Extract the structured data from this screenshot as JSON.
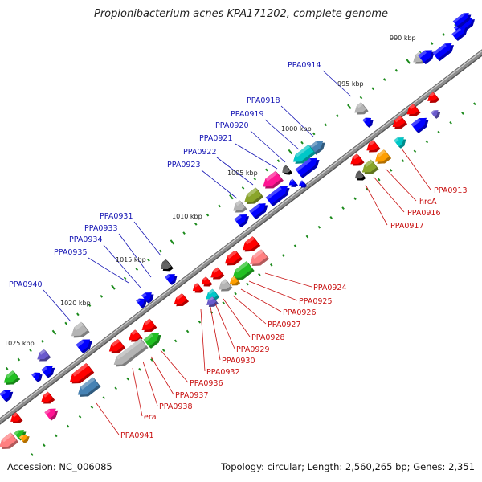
{
  "title": "Propionibacterium acnes KPA171202, complete genome",
  "footer": {
    "accession": "Accession: NC_006085",
    "topology": "Topology: circular; Length: 2,560,265 bp; Genes: 2,351"
  },
  "colors": {
    "backbone": "#8c8c8c",
    "tick": "#1b8a1b",
    "label_top": "#1515b4",
    "label_bottom": "#c81010",
    "gene_red": "#ff0000",
    "gene_blue": "#0000ff",
    "gene_gray": "#b4b4b4",
    "gene_pink": "#ff1493",
    "gene_green": "#22c022",
    "gene_cyan": "#00c8c8",
    "gene_orange": "#ff9f00",
    "gene_olive": "#8aa52a",
    "gene_salmon": "#ff7f80",
    "gene_steel": "#4682b4",
    "gene_purple": "#6a5acd"
  },
  "kbp_labels": [
    "990 kbp",
    "995 kbp",
    "1000 kbp",
    "1005 kbp",
    "1010 kbp",
    "1015 kbp",
    "1020 kbp",
    "1025 kbp"
  ],
  "labels_top": [
    "PPA0914",
    "PPA0918",
    "PPA0919",
    "PPA0920",
    "PPA0921",
    "PPA0922",
    "PPA0923",
    "PPA0931",
    "PPA0933",
    "PPA0934",
    "PPA0935",
    "PPA0940"
  ],
  "labels_bottom": [
    "PPA0913",
    "hrcA",
    "PPA0916",
    "PPA0917",
    "PPA0924",
    "PPA0925",
    "PPA0926",
    "PPA0927",
    "PPA0928",
    "PPA0929",
    "PPA0930",
    "PPA0932",
    "PPA0936",
    "PPA0937",
    "PPA0938",
    "era",
    "PPA0941"
  ]
}
